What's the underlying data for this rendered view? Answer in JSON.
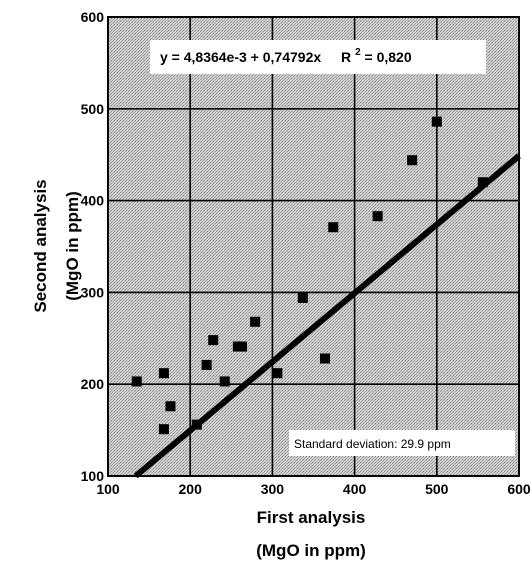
{
  "chart_data": {
    "type": "scatter",
    "title": "",
    "xlabel": [
      "First analysis",
      "(MgO in ppm)"
    ],
    "ylabel": [
      "Second analysis",
      "(MgO in ppm)"
    ],
    "xlim": [
      100,
      600
    ],
    "ylim": [
      100,
      600
    ],
    "xticks": [
      "100",
      "200",
      "300",
      "400",
      "500",
      "600"
    ],
    "yticks": [
      "100",
      "200",
      "300",
      "400",
      "500",
      "600"
    ],
    "grid": true,
    "points": [
      {
        "x": 135,
        "y": 203
      },
      {
        "x": 168,
        "y": 212
      },
      {
        "x": 168,
        "y": 151
      },
      {
        "x": 176,
        "y": 176
      },
      {
        "x": 208,
        "y": 156
      },
      {
        "x": 220,
        "y": 221
      },
      {
        "x": 228,
        "y": 248
      },
      {
        "x": 242,
        "y": 203
      },
      {
        "x": 258,
        "y": 241
      },
      {
        "x": 263,
        "y": 241
      },
      {
        "x": 279,
        "y": 268
      },
      {
        "x": 306,
        "y": 212
      },
      {
        "x": 337,
        "y": 294
      },
      {
        "x": 364,
        "y": 228
      },
      {
        "x": 374,
        "y": 371
      },
      {
        "x": 428,
        "y": 383
      },
      {
        "x": 470,
        "y": 444
      },
      {
        "x": 500,
        "y": 486
      },
      {
        "x": 556,
        "y": 420
      }
    ],
    "fit_line": {
      "intercept": 0.0048364,
      "slope": 0.74792
    },
    "annotations": {
      "equation": "y = 4,8364e-3 + 0,74792x",
      "r2_prefix": "R",
      "r2_sup": "2",
      "r2_value": " = 0,820",
      "std_dev": "Standard deviation: 29.9 ppm"
    },
    "colors": {
      "points": "#000000",
      "line": "#000000",
      "background": "#c8c8c8",
      "grid": "#000000"
    }
  }
}
